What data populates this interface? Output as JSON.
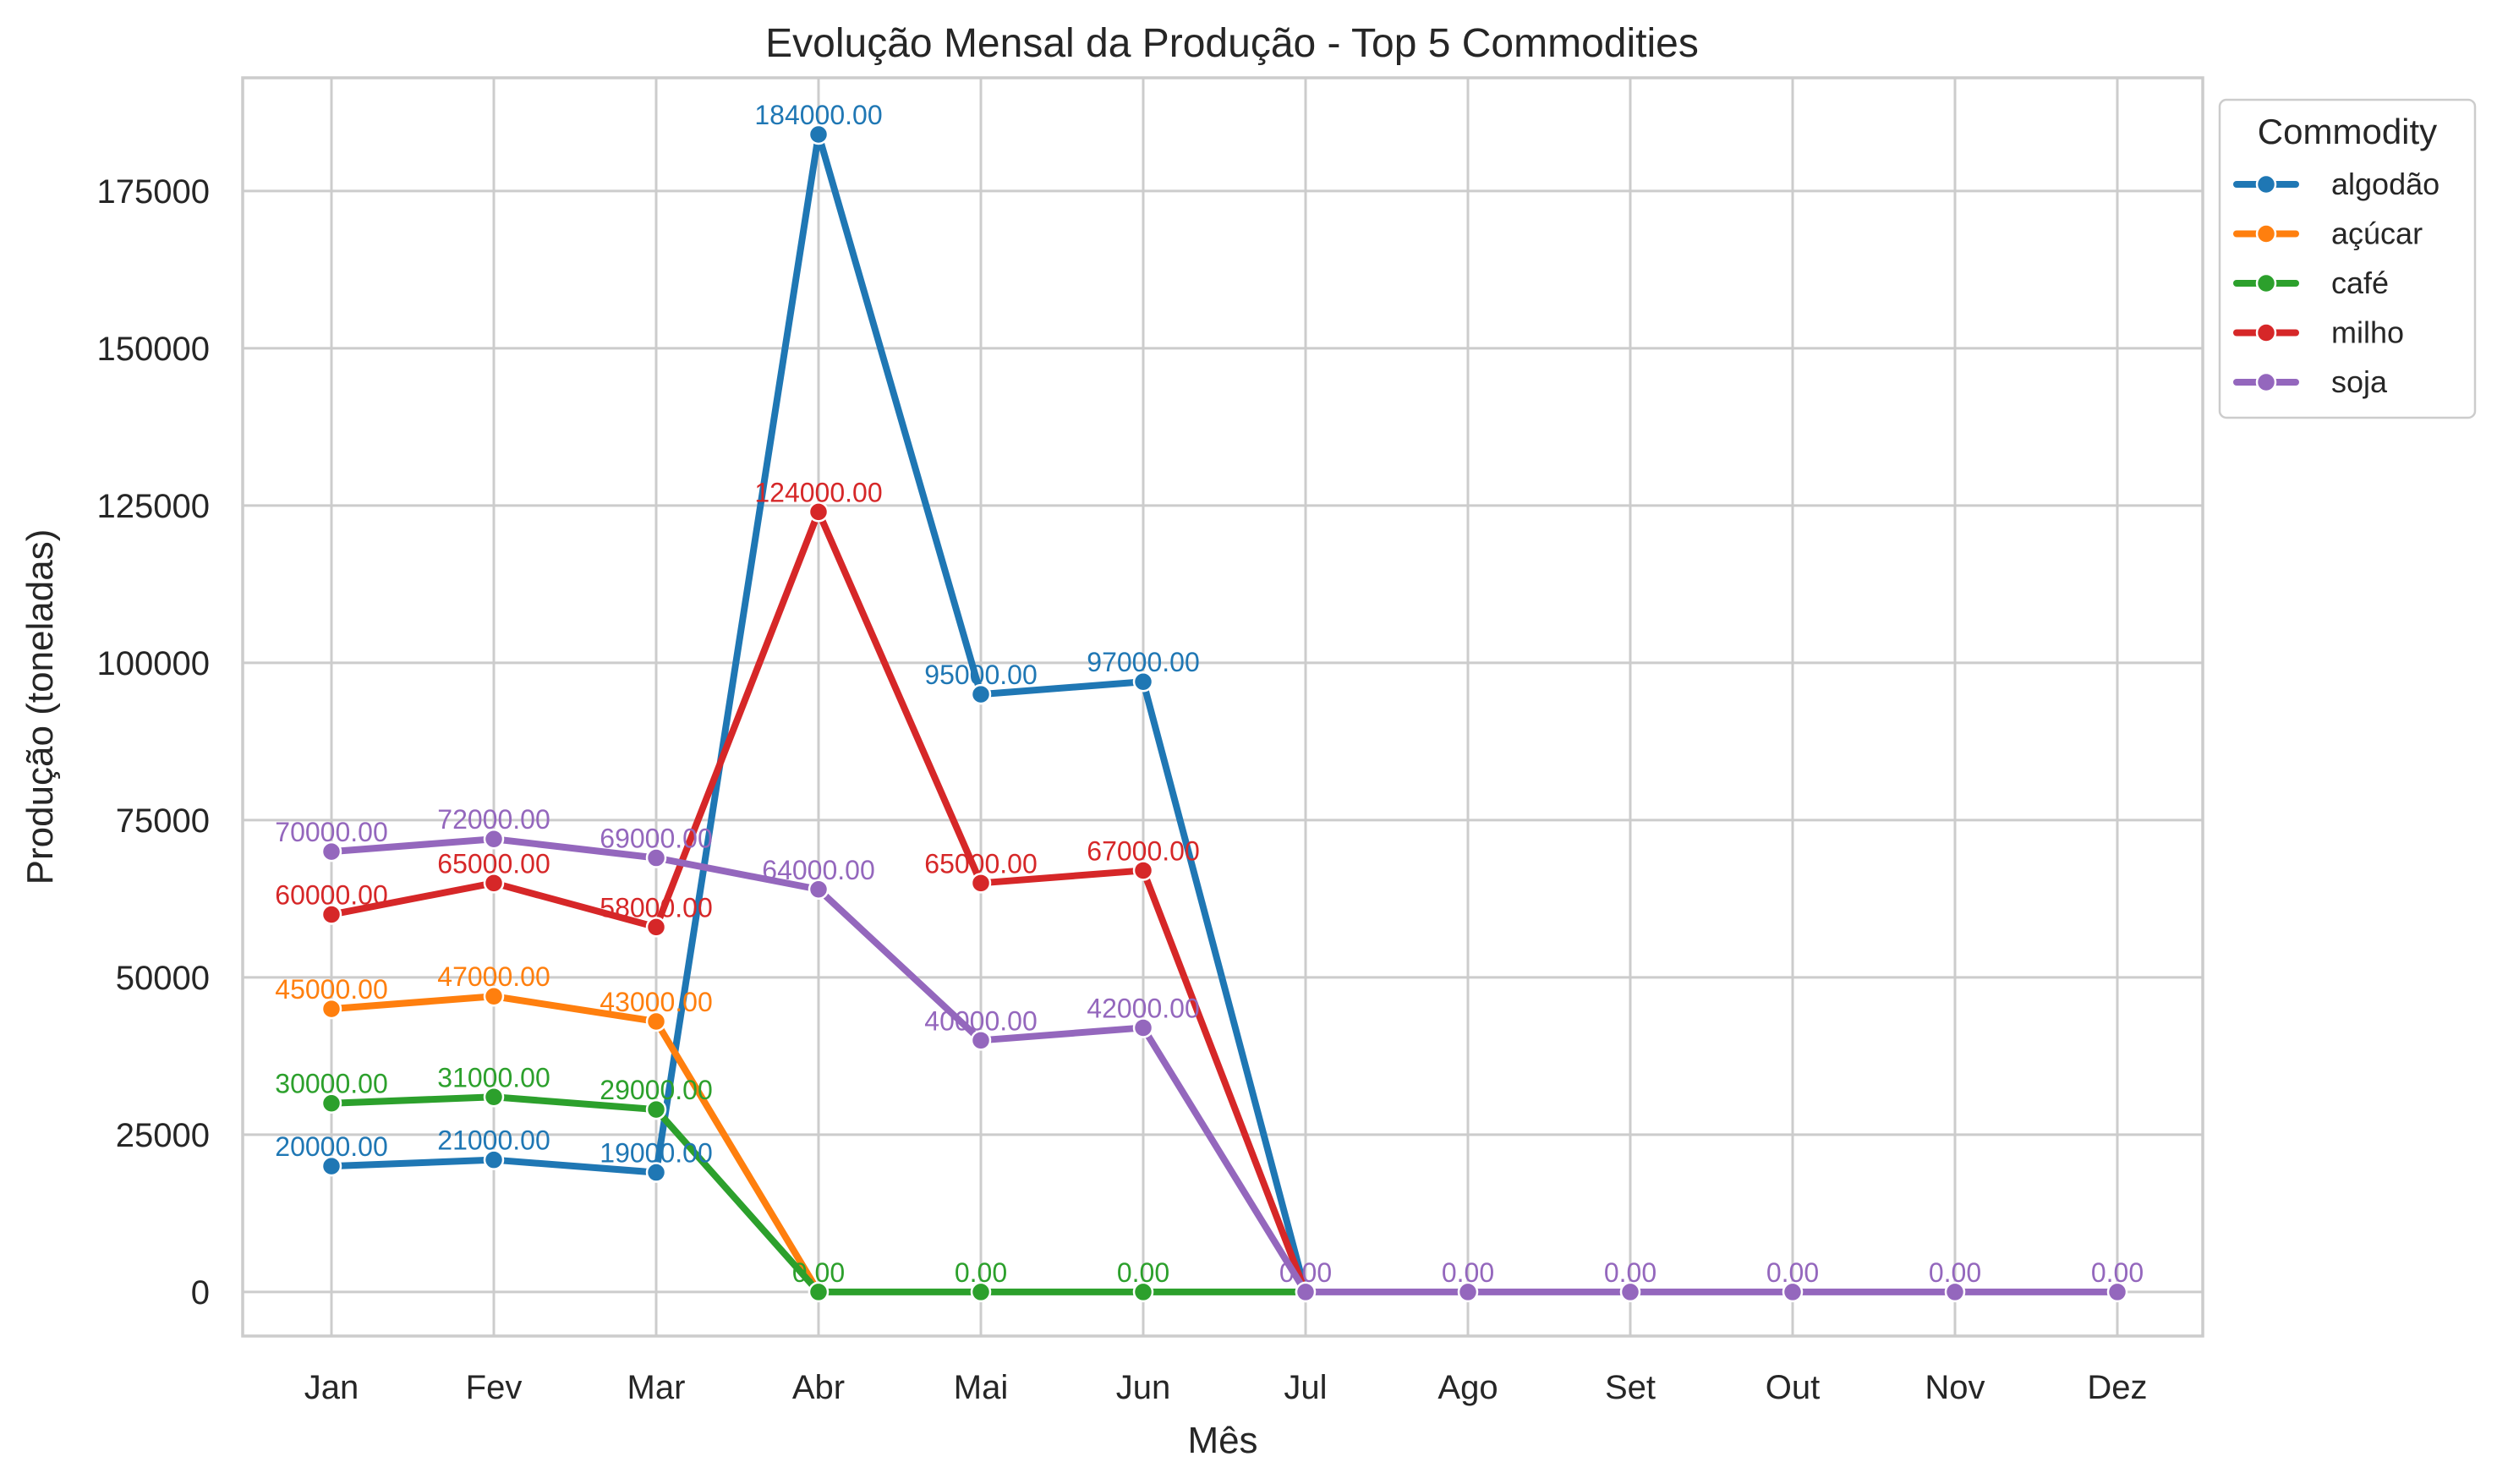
{
  "chart_data": {
    "type": "line",
    "title": "Evolução Mensal da Produção - Top 5 Commodities",
    "xlabel": "Mês",
    "ylabel": "Produção (toneladas)",
    "categories": [
      "Jan",
      "Fev",
      "Mar",
      "Abr",
      "Mai",
      "Jun",
      "Jul",
      "Ago",
      "Set",
      "Out",
      "Nov",
      "Dez"
    ],
    "ylim": [
      -7000,
      193000
    ],
    "yticks": [
      0,
      25000,
      50000,
      75000,
      100000,
      125000,
      150000,
      175000
    ],
    "grid": true,
    "legend": {
      "title": "Commodity",
      "placement": "outside top-right"
    },
    "series": [
      {
        "name": "algodão",
        "color": "#1f77b4",
        "values": [
          20000,
          21000,
          19000,
          184000,
          95000,
          97000,
          0,
          null,
          null,
          null,
          null,
          null
        ],
        "labels": [
          "20000.00",
          "21000.00",
          "19000.00",
          "184000.00",
          "95000.00",
          "97000.00",
          "",
          "",
          "",
          "",
          "",
          ""
        ]
      },
      {
        "name": "açúcar",
        "color": "#ff7f0e",
        "values": [
          45000,
          47000,
          43000,
          0,
          null,
          null,
          null,
          null,
          null,
          null,
          null,
          null
        ],
        "labels": [
          "45000.00",
          "47000.00",
          "43000.00",
          "",
          "",
          "",
          "",
          "",
          "",
          "",
          "",
          ""
        ]
      },
      {
        "name": "café",
        "color": "#2ca02c",
        "values": [
          30000,
          31000,
          29000,
          0,
          0,
          0,
          0,
          null,
          null,
          null,
          null,
          null
        ],
        "labels": [
          "30000.00",
          "31000.00",
          "29000.00",
          "0.00",
          "0.00",
          "0.00",
          "",
          "",
          "",
          "",
          "",
          ""
        ]
      },
      {
        "name": "milho",
        "color": "#d62728",
        "values": [
          60000,
          65000,
          58000,
          124000,
          65000,
          67000,
          0,
          null,
          null,
          null,
          null,
          null
        ],
        "labels": [
          "60000.00",
          "65000.00",
          "58000.00",
          "124000.00",
          "65000.00",
          "67000.00",
          "",
          "",
          "",
          "",
          "",
          ""
        ]
      },
      {
        "name": "soja",
        "color": "#9467bd",
        "values": [
          70000,
          72000,
          69000,
          64000,
          40000,
          42000,
          0,
          0,
          0,
          0,
          0,
          0
        ],
        "labels": [
          "70000.00",
          "72000.00",
          "69000.00",
          "64000.00",
          "40000.00",
          "42000.00",
          "0.00",
          "0.00",
          "0.00",
          "0.00",
          "0.00",
          "0.00"
        ]
      }
    ]
  }
}
